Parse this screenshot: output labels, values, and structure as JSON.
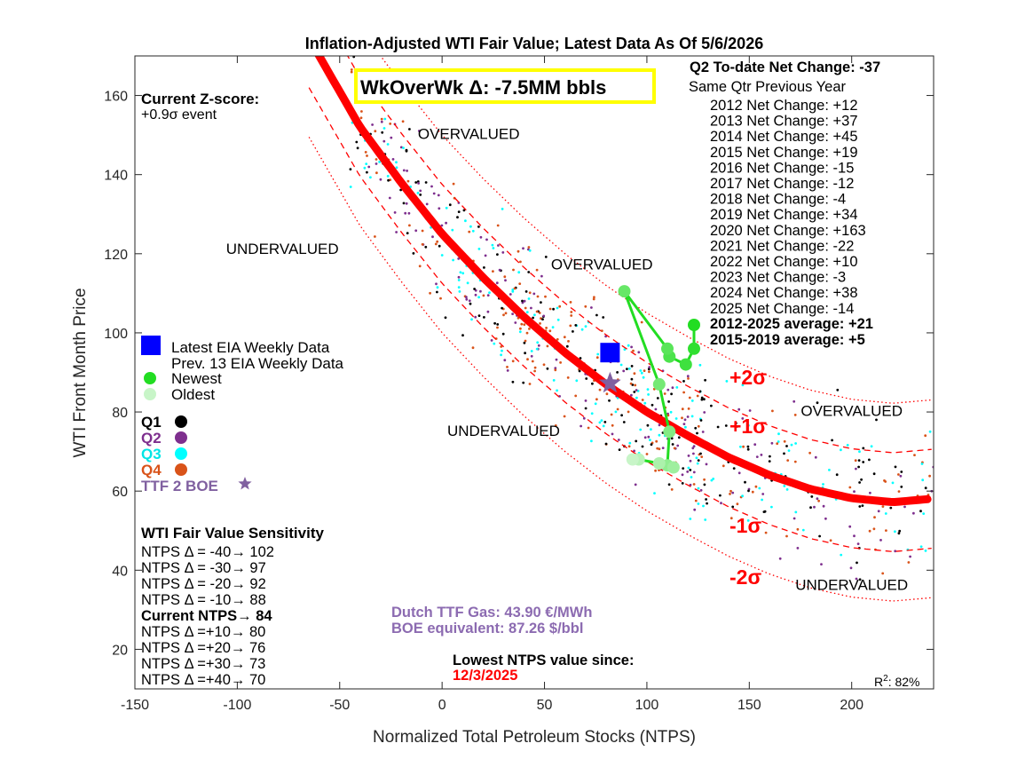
{
  "chart_data": {
    "type": "scatter",
    "title": "Inflation-Adjusted WTI Fair Value; Latest Data As Of 5/6/2026",
    "xlabel": "Normalized Total Petroleum Stocks (NTPS)",
    "ylabel": "WTI Front Month Price",
    "xlim": [
      -150,
      240
    ],
    "ylim": [
      10,
      170
    ],
    "x_ticks": [
      -150,
      -100,
      -50,
      0,
      50,
      100,
      150,
      200
    ],
    "y_ticks": [
      20,
      40,
      60,
      80,
      100,
      120,
      140,
      160
    ],
    "fair_value_curve": {
      "x": [
        -60,
        -40,
        -20,
        0,
        20,
        40,
        60,
        80,
        100,
        120,
        140,
        160,
        180,
        200,
        220,
        238
      ],
      "y": [
        170,
        152,
        138,
        125,
        114,
        104,
        95,
        87,
        80,
        74,
        68.5,
        64,
        60.5,
        58.2,
        57.2,
        58
      ]
    },
    "sigma_offsets": [
      {
        "label": "+2σ",
        "offset": 25,
        "style": "dotted"
      },
      {
        "label": "+1σ",
        "offset": 12.5,
        "style": "dashed"
      },
      {
        "label": "-1σ",
        "offset": -12.5,
        "style": "dashed"
      },
      {
        "label": "-2σ",
        "offset": -25,
        "style": "dotted"
      }
    ],
    "latest": {
      "x": 82,
      "y": 95
    },
    "ttf_boe": {
      "x": 82,
      "y": 87.26
    },
    "prev13": [
      {
        "x": 123,
        "y": 102
      },
      {
        "x": 123,
        "y": 96
      },
      {
        "x": 119,
        "y": 92
      },
      {
        "x": 111,
        "y": 94
      },
      {
        "x": 110,
        "y": 96
      },
      {
        "x": 89,
        "y": 110.5
      },
      {
        "x": 106,
        "y": 87
      },
      {
        "x": 111,
        "y": 75
      },
      {
        "x": 110,
        "y": 66.5
      },
      {
        "x": 113,
        "y": 66
      },
      {
        "x": 106,
        "y": 67
      },
      {
        "x": 96,
        "y": 68
      },
      {
        "x": 93,
        "y": 68
      }
    ],
    "historical_points": {
      "note": "dense quarterly scatter, colored by quarter",
      "colors": {
        "Q1": "#000000",
        "Q2": "#7e2f8e",
        "Q3": "#00ffff",
        "Q4": "#d95319"
      }
    },
    "zone_labels": [
      {
        "text": "OVERVALUED",
        "x": 13,
        "y": 149
      },
      {
        "text": "UNDERVALUED",
        "x": -78,
        "y": 120
      },
      {
        "text": "OVERVALUED",
        "x": 78,
        "y": 116
      },
      {
        "text": "UNDERVALUED",
        "x": 30,
        "y": 74
      },
      {
        "text": "OVERVALUED",
        "x": 200,
        "y": 79
      },
      {
        "text": "UNDERVALUED",
        "x": 200,
        "y": 35
      }
    ],
    "legend": {
      "latest": "Latest EIA Weekly Data",
      "prev13": "Prev. 13 EIA Weekly Data",
      "newest": "Newest",
      "oldest": "Oldest",
      "q1": "Q1",
      "q2": "Q2",
      "q3": "Q3",
      "q4": "Q4",
      "ttf": "TTF 2 BOE"
    },
    "zscore": {
      "title": "Current Z-score:",
      "value": "+0.9σ event"
    },
    "wow_box": "WkOverWk Δ: -7.5MM bbls",
    "qtr": {
      "header": "Q2 To-date Net Change: -37",
      "subheader": "Same Qtr Previous Year",
      "rows": [
        "2012 Net Change: +12",
        "2013 Net Change: +37",
        "2014 Net Change: +45",
        "2015 Net Change: +19",
        "2016 Net Change: -15",
        "2017 Net Change: -12",
        "2018 Net Change: -4",
        "2019 Net Change: +34",
        "2020 Net Change: +163",
        "2021 Net Change: -22",
        "2022 Net Change: +10",
        "2023 Net Change: -3",
        "2024 Net Change: +38",
        "2025 Net Change: -14"
      ],
      "avg1": "2012-2025 average: +21",
      "avg2": "2015-2019 average: +5"
    },
    "sensitivity": {
      "title": "WTI Fair Value Sensitivity",
      "rows": [
        "NTPS Δ = -40→ 102",
        "NTPS Δ = -30→ 97",
        "NTPS Δ = -20→ 92",
        "NTPS Δ = -10→ 88"
      ],
      "current": "Current NTPS→ 84",
      "rows2": [
        "NTPS Δ =+10→ 80",
        "NTPS Δ =+20→ 76",
        "NTPS Δ =+30→ 73",
        "NTPS Δ =+40→ 70"
      ]
    },
    "ttf_info": {
      "line1": "Dutch TTF Gas: 43.90 €/MWh",
      "line2": "BOE equivalent: 87.26 $/bbl"
    },
    "lowest": {
      "line1": "Lowest NTPS value since:",
      "line2": "12/3/2025"
    },
    "r2_prefix": "R",
    "r2_sup": "2",
    "r2_value": ": 82%"
  },
  "colors": {
    "fair_value": "#ff0000",
    "latest": "#0000ff",
    "newest": "#22dd22",
    "oldest": "#c8f5c8",
    "ttf": "#8060a0",
    "wow_border": "#ffff00"
  }
}
